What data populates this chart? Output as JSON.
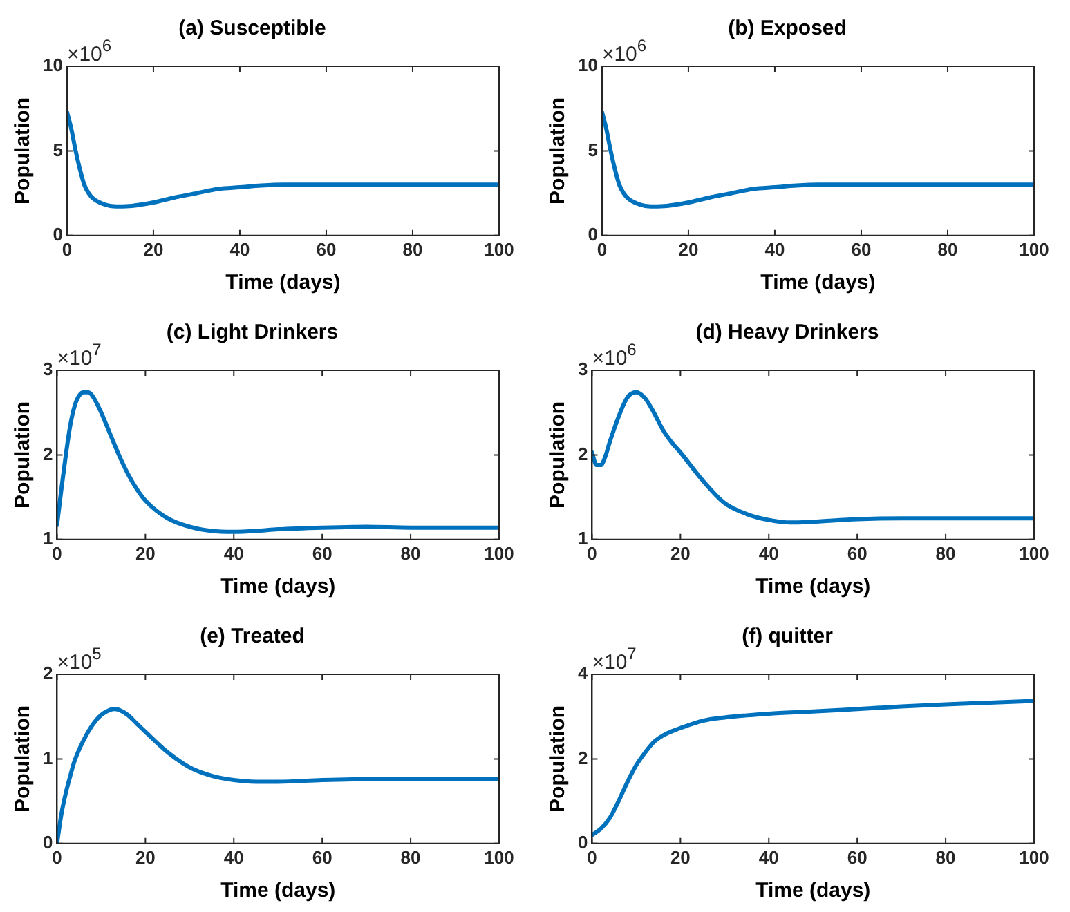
{
  "chart_data": [
    {
      "type": "line",
      "title": "(a) Susceptible",
      "xlabel": "Time (days)",
      "ylabel": "Population",
      "annotations": [
        "×10$^{6}$"
      ],
      "x": [
        0,
        1,
        2,
        3,
        4,
        5,
        6,
        8,
        10,
        12,
        15,
        20,
        25,
        30,
        35,
        40,
        45,
        50,
        60,
        70,
        80,
        90,
        100
      ],
      "series": [
        {
          "color": "#0072bd",
          "values": [
            7.3,
            6.3,
            5.0,
            3.9,
            3.0,
            2.5,
            2.2,
            1.9,
            1.75,
            1.72,
            1.75,
            1.95,
            2.25,
            2.5,
            2.75,
            2.85,
            2.95,
            3.0,
            3.0,
            3.0,
            3.0,
            3.0,
            3.0
          ]
        }
      ],
      "xlim": [
        0,
        100
      ],
      "xticks": [
        0,
        20,
        40,
        60,
        80,
        100
      ],
      "ylim": [
        0,
        10
      ],
      "yticks": [
        0,
        5,
        10
      ],
      "grid": false,
      "legend": false,
      "marker": "none",
      "line_style": "solid"
    },
    {
      "type": "line",
      "title": "(b) Exposed",
      "xlabel": "Time (days)",
      "ylabel": "Population",
      "annotations": [
        "×10$^{6}$"
      ],
      "x": [
        0,
        1,
        2,
        3,
        4,
        5,
        6,
        8,
        10,
        12,
        15,
        20,
        25,
        30,
        35,
        40,
        45,
        50,
        60,
        70,
        80,
        90,
        100
      ],
      "series": [
        {
          "color": "#0072bd",
          "values": [
            7.3,
            6.3,
            5.0,
            3.9,
            3.0,
            2.5,
            2.2,
            1.9,
            1.75,
            1.72,
            1.75,
            1.95,
            2.25,
            2.5,
            2.75,
            2.85,
            2.95,
            3.0,
            3.0,
            3.0,
            3.0,
            3.0,
            3.0
          ]
        }
      ],
      "xlim": [
        0,
        100
      ],
      "xticks": [
        0,
        20,
        40,
        60,
        80,
        100
      ],
      "ylim": [
        0,
        10
      ],
      "yticks": [
        0,
        5,
        10
      ],
      "grid": false,
      "legend": false,
      "marker": "none",
      "line_style": "solid"
    },
    {
      "type": "line",
      "title": "(c) Light Drinkers",
      "xlabel": "Time (days)",
      "ylabel": "Population",
      "annotations": [
        "×10$^{7}$"
      ],
      "x": [
        0,
        1,
        2,
        3,
        4,
        5,
        6,
        7,
        8,
        10,
        12,
        14,
        16,
        18,
        20,
        25,
        30,
        35,
        40,
        45,
        50,
        60,
        70,
        80,
        90,
        100
      ],
      "series": [
        {
          "color": "#0072bd",
          "values": [
            1.17,
            1.6,
            2.0,
            2.35,
            2.58,
            2.7,
            2.74,
            2.74,
            2.7,
            2.5,
            2.25,
            2.0,
            1.78,
            1.6,
            1.46,
            1.25,
            1.15,
            1.1,
            1.09,
            1.1,
            1.12,
            1.14,
            1.15,
            1.14,
            1.14,
            1.14
          ]
        }
      ],
      "xlim": [
        0,
        100
      ],
      "xticks": [
        0,
        20,
        40,
        60,
        80,
        100
      ],
      "ylim": [
        1,
        3
      ],
      "yticks": [
        1,
        2,
        3
      ],
      "grid": false,
      "legend": false,
      "marker": "none",
      "line_style": "solid"
    },
    {
      "type": "line",
      "title": "(d) Heavy Drinkers",
      "xlabel": "Time (days)",
      "ylabel": "Population",
      "annotations": [
        "×10$^{6}$"
      ],
      "x": [
        0,
        1,
        2,
        3,
        4,
        6,
        8,
        10,
        12,
        14,
        16,
        18,
        20,
        25,
        30,
        35,
        40,
        45,
        50,
        60,
        70,
        80,
        90,
        100
      ],
      "series": [
        {
          "color": "#0072bd",
          "values": [
            2.03,
            1.88,
            1.88,
            1.98,
            2.15,
            2.45,
            2.68,
            2.74,
            2.67,
            2.5,
            2.3,
            2.15,
            2.03,
            1.7,
            1.43,
            1.3,
            1.23,
            1.2,
            1.21,
            1.24,
            1.25,
            1.25,
            1.25,
            1.25
          ]
        }
      ],
      "xlim": [
        0,
        100
      ],
      "xticks": [
        0,
        20,
        40,
        60,
        80,
        100
      ],
      "ylim": [
        1,
        3
      ],
      "yticks": [
        1,
        2,
        3
      ],
      "grid": false,
      "legend": false,
      "marker": "none",
      "line_style": "solid"
    },
    {
      "type": "line",
      "title": "(e) Treated",
      "xlabel": "Time (days)",
      "ylabel": "Population",
      "annotations": [
        "×10$^{5}$"
      ],
      "x": [
        0,
        1,
        2,
        3,
        4,
        6,
        8,
        10,
        12,
        13,
        14,
        16,
        18,
        20,
        25,
        30,
        35,
        40,
        45,
        50,
        60,
        70,
        80,
        90,
        100
      ],
      "series": [
        {
          "color": "#0072bd",
          "values": [
            0,
            0.35,
            0.6,
            0.8,
            0.98,
            1.22,
            1.4,
            1.52,
            1.58,
            1.59,
            1.58,
            1.52,
            1.42,
            1.32,
            1.08,
            0.9,
            0.8,
            0.75,
            0.73,
            0.73,
            0.75,
            0.76,
            0.76,
            0.76,
            0.76
          ]
        }
      ],
      "xlim": [
        0,
        100
      ],
      "xticks": [
        0,
        20,
        40,
        60,
        80,
        100
      ],
      "ylim": [
        0,
        2
      ],
      "yticks": [
        0,
        1,
        2
      ],
      "grid": false,
      "legend": false,
      "marker": "none",
      "line_style": "solid"
    },
    {
      "type": "line",
      "title": "(f) quitter",
      "xlabel": "Time (days)",
      "ylabel": "Population",
      "annotations": [
        "×10$^{7}$"
      ],
      "x": [
        0,
        2,
        4,
        6,
        8,
        10,
        12,
        14,
        16,
        18,
        20,
        25,
        30,
        35,
        40,
        50,
        60,
        70,
        80,
        90,
        100
      ],
      "series": [
        {
          "color": "#0072bd",
          "values": [
            0.2,
            0.35,
            0.6,
            1.0,
            1.45,
            1.85,
            2.15,
            2.4,
            2.55,
            2.65,
            2.73,
            2.9,
            2.98,
            3.03,
            3.07,
            3.12,
            3.18,
            3.24,
            3.29,
            3.33,
            3.37
          ]
        }
      ],
      "xlim": [
        0,
        100
      ],
      "xticks": [
        0,
        20,
        40,
        60,
        80,
        100
      ],
      "ylim": [
        0,
        4
      ],
      "yticks": [
        0,
        2,
        4
      ],
      "grid": false,
      "legend": false,
      "marker": "none",
      "line_style": "solid"
    }
  ]
}
